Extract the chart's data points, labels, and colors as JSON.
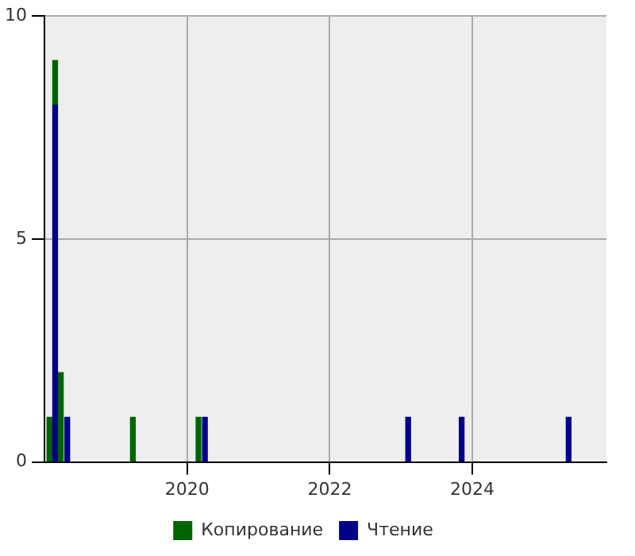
{
  "chart_data": {
    "type": "bar",
    "stacked": true,
    "x": [
      2018.07,
      2018.15,
      2018.23,
      2018.32,
      2019.24,
      2020.16,
      2020.25,
      2023.1,
      2023.85,
      2025.35
    ],
    "series": [
      {
        "name": "Чтение",
        "color": "#00008b",
        "values": [
          null,
          8,
          null,
          1,
          null,
          null,
          1,
          1,
          1,
          1
        ]
      },
      {
        "name": "Копирование",
        "color": "#006400",
        "values": [
          1,
          1,
          2,
          null,
          1,
          1,
          null,
          null,
          null,
          null
        ]
      }
    ],
    "xlim": [
      2018,
      2025.88
    ],
    "xticks": [
      2020,
      2022,
      2024
    ],
    "ylim": [
      0,
      10
    ],
    "yticks": [
      0,
      5,
      10
    ],
    "grid": true,
    "legend": "bottom"
  }
}
